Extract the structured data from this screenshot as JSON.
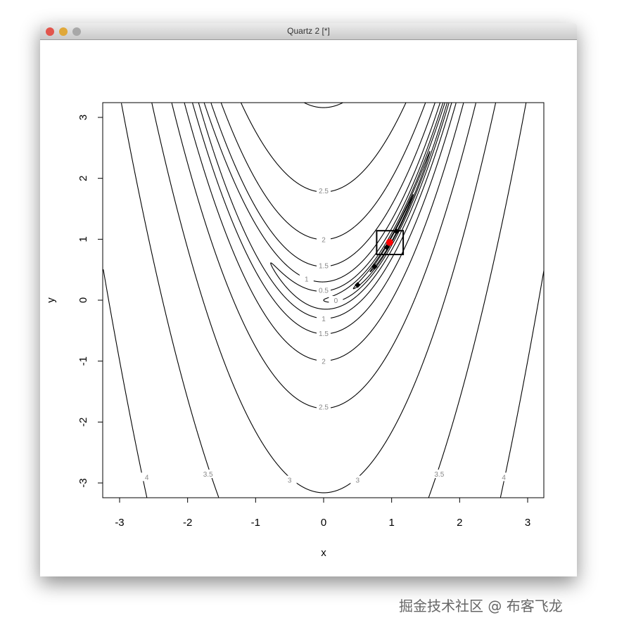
{
  "window": {
    "title": "Quartz 2 [*]"
  },
  "watermark": "掘金技术社区 @ 布客飞龙",
  "chart_data": {
    "type": "contour",
    "function": "log10((1-x)^2 + 100*(y-x^2)^2)",
    "xlabel": "x",
    "ylabel": "y",
    "xlim": [
      -3.24,
      3.24
    ],
    "ylim": [
      -3.24,
      3.24
    ],
    "xticks": [
      "-3",
      "-2",
      "-1",
      "0",
      "1",
      "2",
      "3"
    ],
    "yticks": [
      "-3",
      "-2",
      "-1",
      "0",
      "1",
      "2",
      "3"
    ],
    "levels": [
      -1,
      -0.5,
      0,
      0.5,
      1,
      1.5,
      2,
      2.5,
      3,
      3.5,
      4
    ],
    "level_labels": [
      "0",
      "0.5",
      "1",
      "1.5",
      "2",
      "2.5",
      "3",
      "3.5",
      "4"
    ],
    "highlight_box": {
      "x": [
        0.78,
        1.17
      ],
      "y": [
        0.75,
        1.14
      ]
    },
    "optimum_point": {
      "x": 0.97,
      "y": 0.95,
      "color": "#ff0000"
    },
    "path_points": [
      {
        "x": 1.07,
        "y": 1.13
      },
      {
        "x": 0.93,
        "y": 0.87
      },
      {
        "x": 0.75,
        "y": 0.55
      },
      {
        "x": 0.5,
        "y": 0.25
      }
    ],
    "grid": false
  }
}
